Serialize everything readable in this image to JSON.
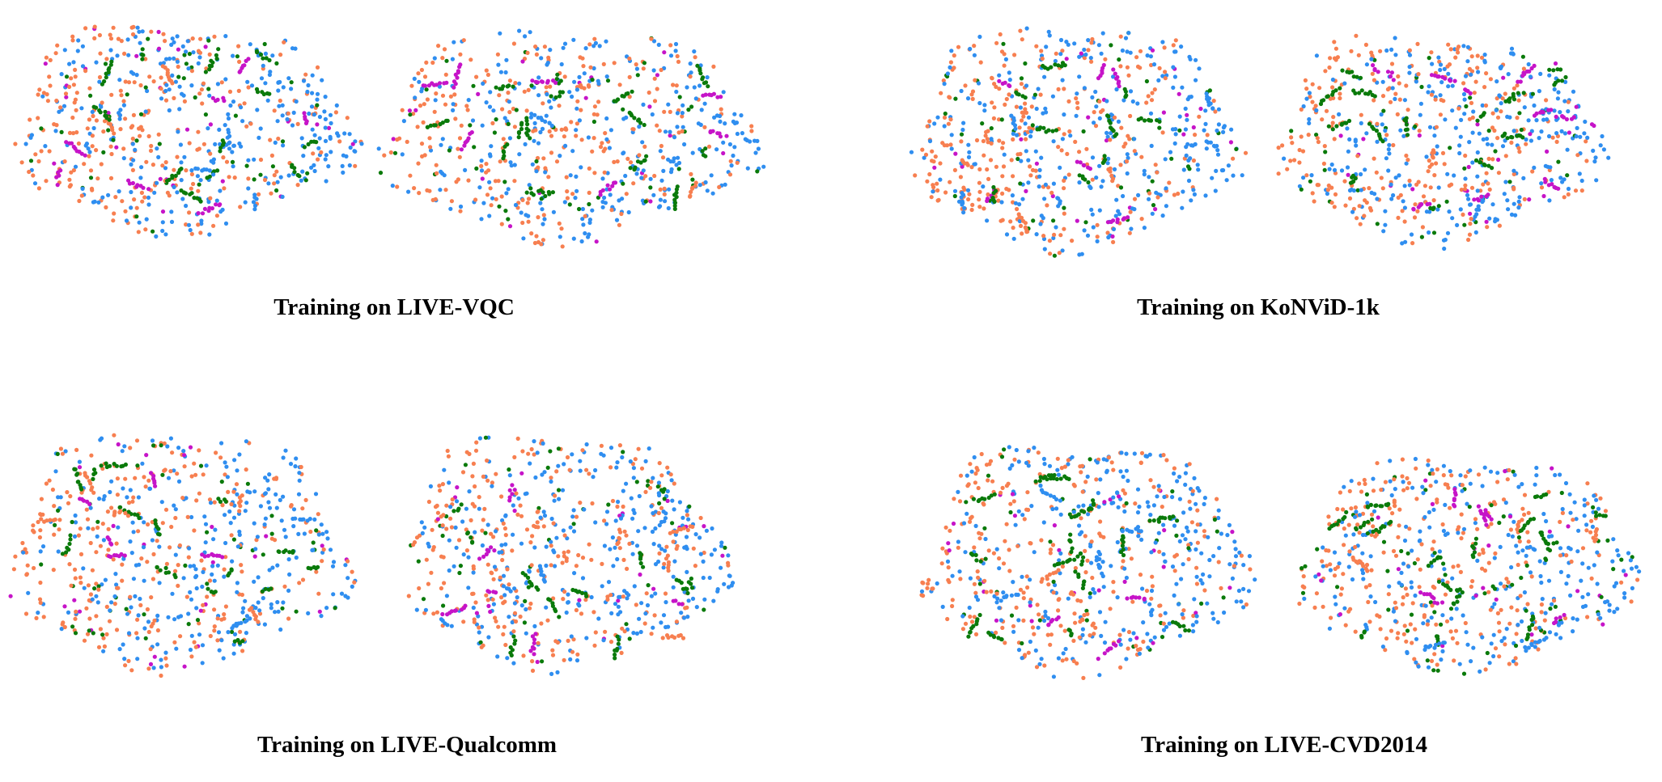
{
  "colors": {
    "orange": "#f77f50",
    "blue": "#2f8ef0",
    "green": "#0a7a0a",
    "magenta": "#c614c8",
    "background": "#ffffff"
  },
  "captions": [
    "Training on LIVE-VQC",
    "Training on KoNViD-1k",
    "Training on LIVE-Qualcomm",
    "Training on LIVE-CVD2014"
  ],
  "chart_data": [
    {
      "type": "scatter",
      "title": "Training on LIVE-VQC",
      "grid": false,
      "legend": "none",
      "panels": 2,
      "series_colors": [
        "orange",
        "blue",
        "green",
        "magenta"
      ]
    },
    {
      "type": "scatter",
      "title": "Training on KoNViD-1k",
      "grid": false,
      "legend": "none",
      "panels": 2,
      "series_colors": [
        "orange",
        "blue",
        "green",
        "magenta"
      ]
    },
    {
      "type": "scatter",
      "title": "Training on LIVE-Qualcomm",
      "grid": false,
      "legend": "none",
      "panels": 2,
      "series_colors": [
        "orange",
        "blue",
        "green",
        "magenta"
      ]
    },
    {
      "type": "scatter",
      "title": "Training on LIVE-CVD2014",
      "grid": false,
      "legend": "none",
      "panels": 2,
      "series_colors": [
        "orange",
        "blue",
        "green",
        "magenta"
      ]
    }
  ]
}
